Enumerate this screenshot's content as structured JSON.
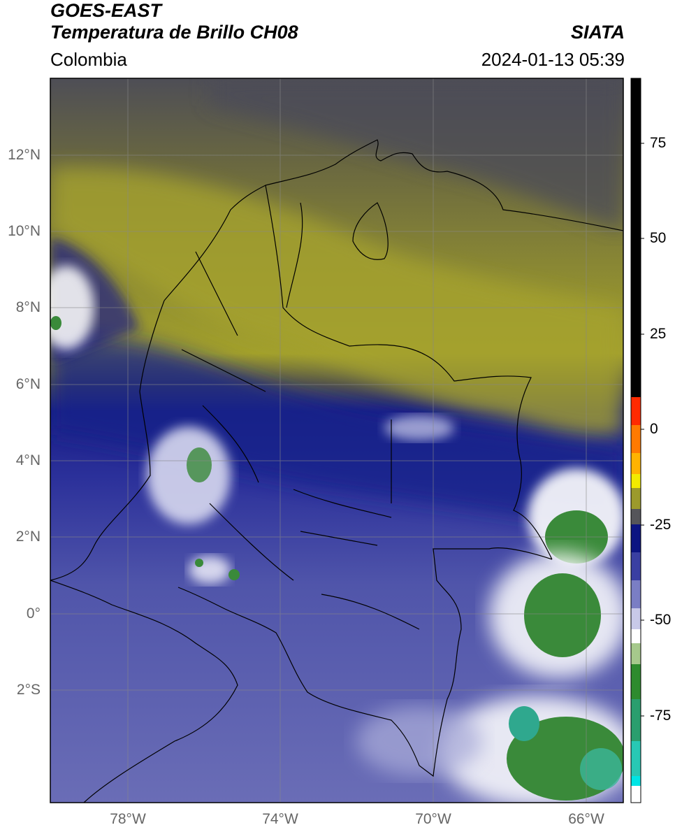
{
  "header": {
    "satellite": "GOES-EAST",
    "product": "Temperatura de Brillo CH08",
    "region": "Colombia",
    "agency": "SIATA",
    "timestamp": "2024-01-13 05:39"
  },
  "axes": {
    "lat_labels": [
      "12°N",
      "10°N",
      "8°N",
      "6°N",
      "4°N",
      "2°N",
      "0°",
      "2°S"
    ],
    "lon_labels": [
      "78°W",
      "74°W",
      "70°W",
      "66°W"
    ]
  },
  "colorbar": {
    "ticks": [
      "75",
      "50",
      "25",
      "0",
      "-25",
      "-50",
      "-75"
    ],
    "colors": {
      "black": "#000000",
      "red": "#ff2a00",
      "orange": "#ff9900",
      "yellow": "#f2ea00",
      "olive": "#8f8f2a",
      "gray": "#55555a",
      "navy": "#0c1482",
      "blue": "#3a3fa2",
      "lavender": "#a3a6d6",
      "white": "#ffffff",
      "green": "#2e8b2e",
      "teal": "#28c8b4",
      "cyan": "#00e5e5"
    }
  },
  "colors": {
    "cold_top_green": "#3a8a3a",
    "haze_olive": "#8c8a34",
    "dry_gray": "#4c4c58",
    "moist_navy": "#18208a",
    "moist_blue": "#4c52a8"
  }
}
